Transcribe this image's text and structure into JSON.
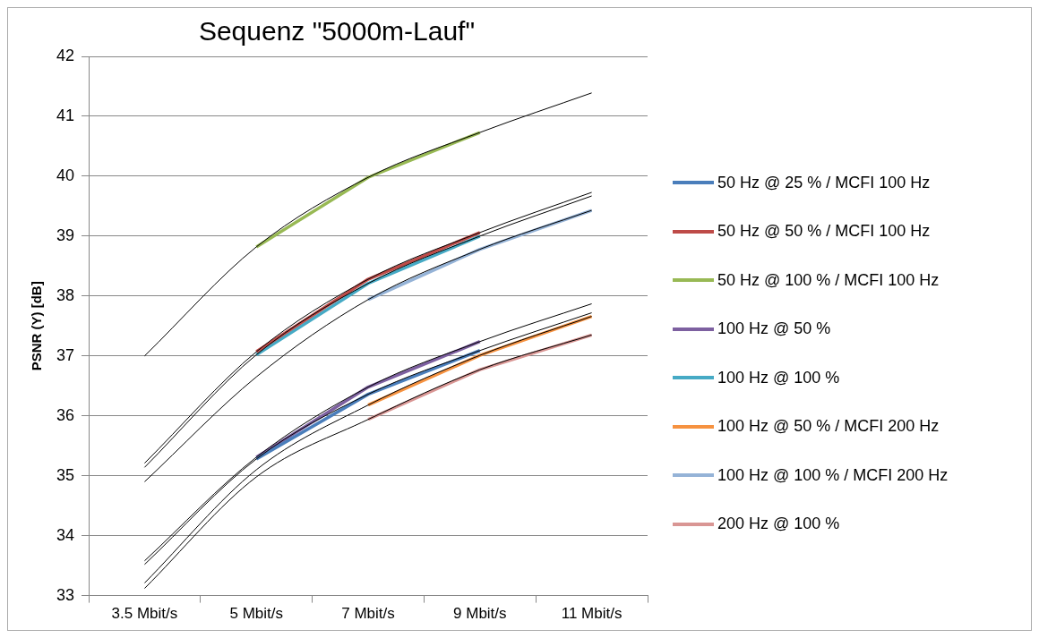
{
  "chart_data": {
    "type": "line",
    "title": "Sequenz \"5000m-Lauf\"",
    "ylabel": "PSNR (Y) [dB]",
    "categories": [
      "3.5 Mbit/s",
      "5 Mbit/s",
      "7 Mbit/s",
      "9 Mbit/s",
      "11 Mbit/s"
    ],
    "ylim": [
      33,
      42
    ],
    "yticks": [
      33,
      34,
      35,
      36,
      37,
      38,
      39,
      40,
      41,
      42
    ],
    "grid": "y",
    "legend": "right",
    "marker": "none",
    "series": [
      {
        "name": "50 Hz @ 25 % / MCFI 100 Hz",
        "color": "#4a7ebb",
        "values": [
          null,
          35.28,
          36.36,
          37.09,
          null
        ]
      },
      {
        "name": "50 Hz @ 50 % / MCFI 100 Hz",
        "color": "#be4b48",
        "values": [
          null,
          37.07,
          38.28,
          39.06,
          null
        ]
      },
      {
        "name": "50 Hz @ 100 % / MCFI 100 Hz",
        "color": "#98b954",
        "values": [
          null,
          38.82,
          39.98,
          40.73,
          null
        ]
      },
      {
        "name": "100 Hz @ 50 %",
        "color": "#7d60a0",
        "values": [
          null,
          35.31,
          36.48,
          37.24,
          null
        ]
      },
      {
        "name": "100 Hz @ 100 %",
        "color": "#46aac5",
        "values": [
          null,
          37.02,
          38.21,
          39.0,
          null
        ]
      },
      {
        "name": "100 Hz @ 50 % / MCFI 200 Hz",
        "color": "#f69240",
        "values": [
          null,
          null,
          36.18,
          37.01,
          37.66
        ]
      },
      {
        "name": "100 Hz @ 100 % / MCFI 200 Hz",
        "color": "#95b3d7",
        "values": [
          null,
          null,
          37.94,
          38.78,
          39.43
        ]
      },
      {
        "name": "200 Hz @ 100 %",
        "color": "#d99694",
        "values": [
          null,
          null,
          35.94,
          36.77,
          37.35
        ]
      },
      {
        "type": "line",
        "color": "#000000",
        "values": [
          33.52,
          35.28,
          36.36,
          37.09,
          37.72
        ]
      },
      {
        "type": "line",
        "color": "#000000",
        "values": [
          35.21,
          37.07,
          38.28,
          39.06,
          39.73
        ]
      },
      {
        "type": "line",
        "color": "#000000",
        "values": [
          37.0,
          38.82,
          39.98,
          40.73,
          41.39
        ]
      },
      {
        "type": "line",
        "color": "#000000",
        "values": [
          33.58,
          35.31,
          36.48,
          37.24,
          37.87
        ]
      },
      {
        "type": "line",
        "color": "#000000",
        "values": [
          35.14,
          37.02,
          38.21,
          39.0,
          39.67
        ]
      },
      {
        "type": "line",
        "color": "#000000",
        "values": [
          33.21,
          35.1,
          36.18,
          37.01,
          37.66
        ]
      },
      {
        "type": "line",
        "color": "#000000",
        "values": [
          34.9,
          36.65,
          37.94,
          38.78,
          39.43
        ]
      },
      {
        "type": "line",
        "color": "#000000",
        "values": [
          33.12,
          34.98,
          35.94,
          36.77,
          37.35
        ]
      }
    ]
  }
}
